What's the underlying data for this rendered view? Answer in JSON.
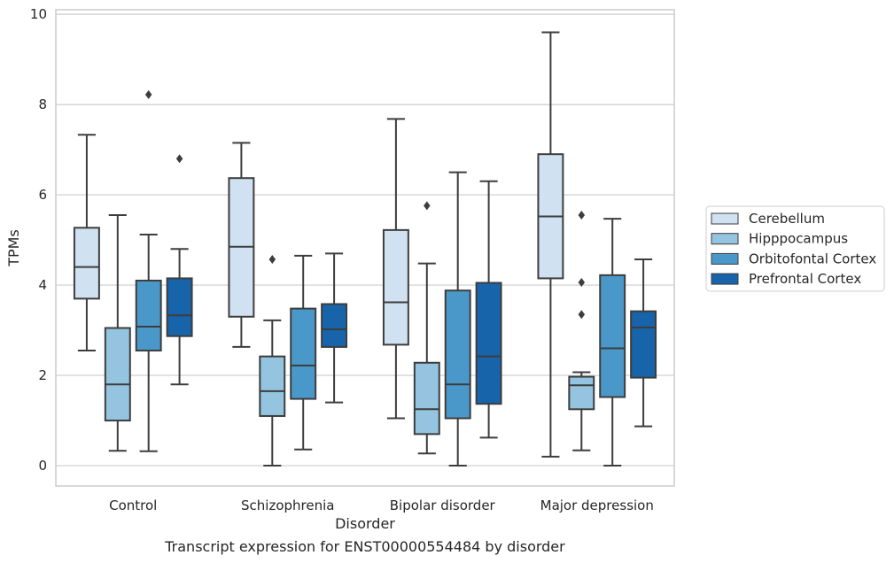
{
  "chart_data": {
    "type": "box",
    "title": "",
    "caption": "Transcript expression for ENST00000554484 by disorder",
    "xlabel": "Disorder",
    "ylabel": "TPMs",
    "ylim": [
      -0.45,
      10.1
    ],
    "yticks": [
      0,
      2,
      4,
      6,
      8,
      10
    ],
    "grid": true,
    "legend_position": "right",
    "categories": [
      "Control",
      "Schizophrenia",
      "Bipolar disorder",
      "Major depression"
    ],
    "series": [
      {
        "name": "Cerebellum",
        "color": "#d0e1f2",
        "boxes": [
          {
            "min": 2.55,
            "q1": 3.7,
            "median": 4.4,
            "q3": 5.27,
            "max": 7.33,
            "outliers": []
          },
          {
            "min": 2.63,
            "q1": 3.3,
            "median": 4.85,
            "q3": 6.37,
            "max": 7.15,
            "outliers": []
          },
          {
            "min": 1.05,
            "q1": 2.68,
            "median": 3.62,
            "q3": 5.22,
            "max": 7.68,
            "outliers": []
          },
          {
            "min": 0.2,
            "q1": 4.15,
            "median": 5.52,
            "q3": 6.9,
            "max": 9.6,
            "outliers": []
          }
        ]
      },
      {
        "name": "Hipppocampus",
        "color": "#94c4df",
        "boxes": [
          {
            "min": 0.33,
            "q1": 1.0,
            "median": 1.8,
            "q3": 3.05,
            "max": 5.55,
            "outliers": []
          },
          {
            "min": 0.0,
            "q1": 1.1,
            "median": 1.65,
            "q3": 2.42,
            "max": 3.22,
            "outliers": [
              4.57
            ]
          },
          {
            "min": 0.27,
            "q1": 0.7,
            "median": 1.25,
            "q3": 2.28,
            "max": 4.48,
            "outliers": [
              5.76
            ]
          },
          {
            "min": 0.34,
            "q1": 1.25,
            "median": 1.78,
            "q3": 1.97,
            "max": 2.07,
            "outliers": [
              3.35,
              4.06,
              5.55
            ]
          }
        ]
      },
      {
        "name": "Orbitofontal Cortex",
        "color": "#4a98c9",
        "boxes": [
          {
            "min": 0.32,
            "q1": 2.55,
            "median": 3.08,
            "q3": 4.1,
            "max": 5.12,
            "outliers": [
              8.22
            ]
          },
          {
            "min": 0.36,
            "q1": 1.48,
            "median": 2.22,
            "q3": 3.48,
            "max": 4.65,
            "outliers": []
          },
          {
            "min": 0.0,
            "q1": 1.05,
            "median": 1.8,
            "q3": 3.88,
            "max": 6.5,
            "outliers": []
          },
          {
            "min": 0.0,
            "q1": 1.52,
            "median": 2.6,
            "q3": 4.22,
            "max": 5.47,
            "outliers": []
          }
        ]
      },
      {
        "name": "Prefrontal Cortex",
        "color": "#1764ab",
        "boxes": [
          {
            "min": 1.8,
            "q1": 2.87,
            "median": 3.33,
            "q3": 4.15,
            "max": 4.8,
            "outliers": [
              6.8
            ]
          },
          {
            "min": 1.4,
            "q1": 2.63,
            "median": 3.02,
            "q3": 3.58,
            "max": 4.7,
            "outliers": []
          },
          {
            "min": 0.62,
            "q1": 1.37,
            "median": 2.42,
            "q3": 4.05,
            "max": 6.3,
            "outliers": []
          },
          {
            "min": 0.87,
            "q1": 1.95,
            "median": 3.06,
            "q3": 3.42,
            "max": 4.57,
            "outliers": []
          }
        ]
      }
    ]
  }
}
